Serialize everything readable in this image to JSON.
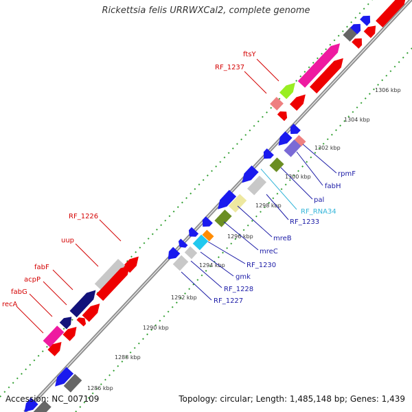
{
  "title": "Rickettsia felis URRWXCal2, complete genome",
  "footer": {
    "accession": "Accession: NC_007109",
    "summary": "Topology: circular; Length: 1,485,148 bp; Genes: 1,439"
  },
  "ticks": [
    "1286 kbp",
    "1288 kbp",
    "1290 kbp",
    "1292 kbp",
    "1294 kbp",
    "1296 kbp",
    "1298 kbp",
    "1300 kbp",
    "1302 kbp",
    "1304 kbp",
    "1306 kbp"
  ],
  "labels": {
    "ftsY": "ftsY",
    "RF_1237": "RF_1237",
    "RF_1226": "RF_1226",
    "uup": "uup",
    "fabF": "fabF",
    "acpP": "acpP",
    "fabG": "fabG",
    "recA": "recA",
    "rpmF": "rpmF",
    "fabH": "fabH",
    "pal": "pal",
    "RF_RNA34": "RF_RNA34",
    "RF_1233": "RF_1233",
    "mreB": "mreB",
    "mreC": "mreC",
    "RF_1230": "RF_1230",
    "gmk": "gmk",
    "RF_1228": "RF_1228",
    "RF_1227": "RF_1227"
  },
  "colors": {
    "backbone": "#8c8c8c",
    "tick_major": "#2e7d32",
    "tick_minor": "#33a033",
    "forward_red": "#ee0000",
    "reverse_blue": "#1a1aee",
    "label_red": "#d40000",
    "label_blue": "#1a1aa6",
    "label_cyan": "#33b5d9"
  }
}
